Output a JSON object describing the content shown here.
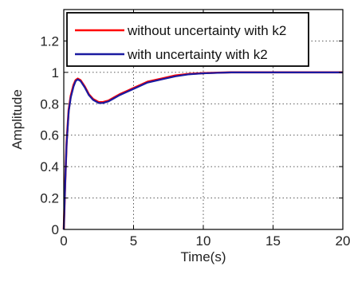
{
  "chart_data": {
    "type": "line",
    "xlabel": "Time(s)",
    "ylabel": "Amplitude",
    "xlim": [
      0,
      20
    ],
    "ylim": [
      0,
      1.4
    ],
    "xticks": [
      0,
      5,
      10,
      15,
      20
    ],
    "xtick_labels": [
      "0",
      "5",
      "10",
      "15",
      "20"
    ],
    "yticks": [
      0,
      0.2,
      0.4,
      0.6,
      0.8,
      1,
      1.2
    ],
    "ytick_labels": [
      "0",
      "0.2",
      "0.4",
      "0.6",
      "0.8",
      "1",
      "1.2"
    ],
    "grid": true,
    "grid_style": "dotted",
    "legend_position": "top",
    "series": [
      {
        "name": "without uncertainty with k2",
        "color": "#ff0000",
        "x": [
          0,
          0.1,
          0.2,
          0.35,
          0.5,
          0.7,
          0.85,
          1.0,
          1.2,
          1.5,
          1.8,
          2.1,
          2.5,
          2.8,
          3.2,
          3.6,
          4.0,
          4.5,
          5.0,
          5.5,
          6.0,
          7.0,
          8.0,
          9.0,
          10.0,
          11.0,
          12.0,
          14.0,
          16.0,
          18.0,
          20.0
        ],
        "y": [
          0,
          0.3,
          0.55,
          0.76,
          0.85,
          0.92,
          0.95,
          0.96,
          0.95,
          0.91,
          0.86,
          0.83,
          0.81,
          0.81,
          0.82,
          0.84,
          0.86,
          0.88,
          0.9,
          0.92,
          0.94,
          0.96,
          0.98,
          0.99,
          0.995,
          0.998,
          1.0,
          1.0,
          1.0,
          1.0,
          1.0
        ]
      },
      {
        "name": "with uncertainty with k2",
        "color": "#1a1aa0",
        "x": [
          0,
          0.1,
          0.2,
          0.35,
          0.5,
          0.7,
          0.85,
          1.0,
          1.2,
          1.5,
          1.8,
          2.1,
          2.5,
          2.8,
          3.2,
          3.6,
          4.0,
          4.5,
          5.0,
          5.5,
          6.0,
          7.0,
          8.0,
          9.0,
          10.0,
          11.0,
          12.0,
          14.0,
          16.0,
          18.0,
          20.0
        ],
        "y": [
          0,
          0.29,
          0.54,
          0.75,
          0.84,
          0.91,
          0.945,
          0.955,
          0.945,
          0.905,
          0.855,
          0.825,
          0.805,
          0.805,
          0.815,
          0.835,
          0.855,
          0.875,
          0.895,
          0.915,
          0.935,
          0.955,
          0.975,
          0.988,
          0.994,
          0.997,
          1.0,
          1.0,
          1.0,
          1.0,
          1.0
        ]
      }
    ]
  }
}
